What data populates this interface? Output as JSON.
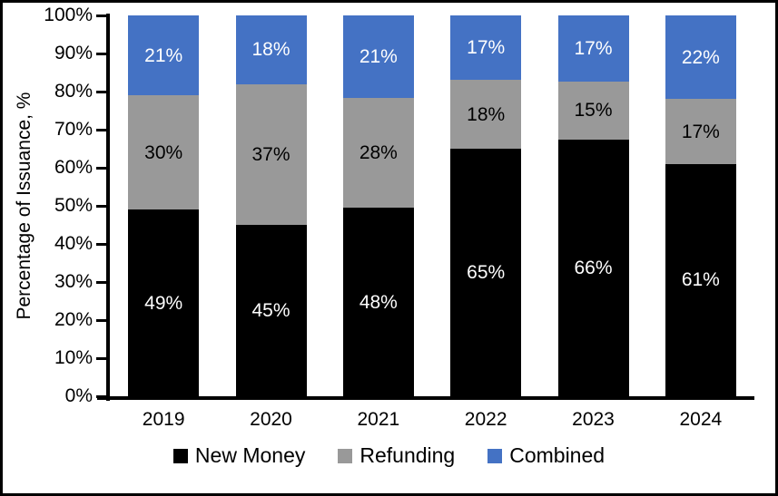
{
  "chart_data": {
    "type": "bar",
    "subtype": "stacked-100-percent",
    "title": "",
    "ylabel": "Percentage of Issuance, %",
    "xlabel": "",
    "categories": [
      "2019",
      "2020",
      "2021",
      "2022",
      "2023",
      "2024"
    ],
    "series": [
      {
        "name": "New Money",
        "color": "#000000",
        "label_color": "#ffffff",
        "values": [
          49,
          45,
          48,
          65,
          66,
          61
        ]
      },
      {
        "name": "Refunding",
        "color": "#999999",
        "label_color": "#000000",
        "values": [
          30,
          37,
          28,
          18,
          15,
          17
        ]
      },
      {
        "name": "Combined",
        "color": "#4472C4",
        "label_color": "#ffffff",
        "values": [
          21,
          18,
          21,
          17,
          17,
          22
        ]
      }
    ],
    "yticks": [
      0,
      10,
      20,
      30,
      40,
      50,
      60,
      70,
      80,
      90,
      100
    ],
    "ytick_suffix": "%",
    "data_label_suffix": "%",
    "ylim": [
      0,
      100
    ],
    "grid": false,
    "legend_position": "bottom",
    "frame_color": "#000000",
    "background_color": "#ffffff"
  }
}
